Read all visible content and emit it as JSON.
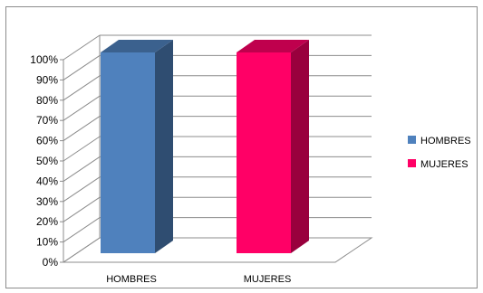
{
  "chart_data": {
    "type": "bar",
    "style": "3d-column",
    "categories": [
      "HOMBRES",
      "MUJERES"
    ],
    "values": [
      100,
      100
    ],
    "colors": [
      "#4f81bd",
      "#ff0066"
    ],
    "ylim": [
      0,
      100
    ],
    "yticks": [
      "0%",
      "10%",
      "20%",
      "30%",
      "40%",
      "50%",
      "60%",
      "70%",
      "80%",
      "90%",
      "100%"
    ],
    "grid": true,
    "legend_position": "right",
    "legend": [
      {
        "label": "HOMBRES",
        "color": "#4f81bd"
      },
      {
        "label": "MUJERES",
        "color": "#ff0066"
      }
    ],
    "title": "",
    "xlabel": "",
    "ylabel": ""
  }
}
